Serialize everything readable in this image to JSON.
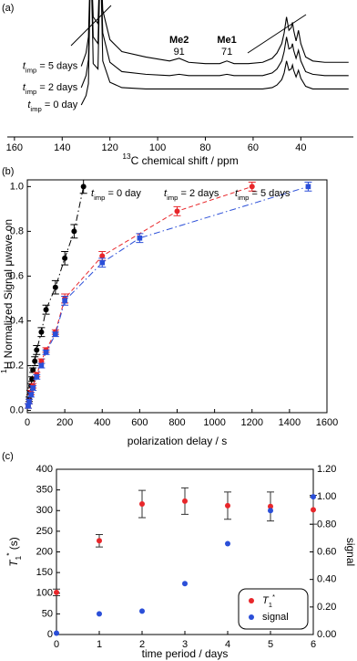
{
  "chart_data": [
    {
      "type": "line",
      "label": "(a)",
      "x_label": "13C chemical shift / ppm",
      "x": [
        132,
        130,
        129,
        128,
        127,
        125,
        124,
        123,
        120,
        115,
        105,
        95,
        91,
        87,
        80,
        74,
        71,
        68,
        62,
        56,
        52,
        50,
        48,
        47,
        46,
        45,
        44,
        43.5,
        43,
        42,
        41,
        40,
        38,
        35,
        30,
        20
      ],
      "xlim": [
        163,
        18
      ],
      "xticks": [
        160,
        140,
        120,
        100,
        80,
        60,
        40
      ],
      "ylim": [
        0,
        10
      ],
      "series": [
        {
          "name": "timp = 5 days",
          "color": "#000000",
          "values": [
            5.3,
            6.3,
            7.5,
            14,
            9,
            8.5,
            14,
            9.5,
            7.3,
            6.4,
            6.0,
            5.7,
            5.9,
            5.6,
            5.5,
            5.5,
            5.7,
            5.5,
            5.5,
            5.6,
            5.9,
            6.3,
            7.0,
            7.8,
            9.0,
            8.0,
            8.2,
            8.6,
            8.0,
            7.2,
            8.0,
            7.0,
            6.0,
            5.7,
            5.6,
            5.6
          ]
        },
        {
          "name": "timp = 2 days",
          "color": "#000000",
          "values": [
            3.7,
            4.6,
            5.8,
            14,
            7.5,
            7.0,
            14,
            7.8,
            5.6,
            4.9,
            4.7,
            4.6,
            4.7,
            4.6,
            4.6,
            4.6,
            4.7,
            4.6,
            4.6,
            4.6,
            4.8,
            5.1,
            5.7,
            6.4,
            7.5,
            6.6,
            6.7,
            7.0,
            6.5,
            5.9,
            6.5,
            5.7,
            4.9,
            4.7,
            4.6,
            4.6
          ]
        },
        {
          "name": "timp = 0 day",
          "color": "#000000",
          "values": [
            2.4,
            3.1,
            4.0,
            14,
            5.5,
            5.1,
            14,
            5.7,
            4.1,
            3.7,
            3.6,
            3.6,
            3.6,
            3.6,
            3.6,
            3.6,
            3.6,
            3.6,
            3.6,
            3.6,
            3.7,
            3.9,
            4.3,
            4.8,
            5.7,
            5.0,
            5.1,
            5.4,
            5.0,
            4.5,
            5.0,
            4.4,
            3.8,
            3.6,
            3.6,
            3.6
          ]
        }
      ],
      "annotations": [
        {
          "name": "Me2",
          "x": 91
        },
        {
          "name": "Me1",
          "x": 71
        }
      ]
    },
    {
      "type": "scatter",
      "label": "(b)",
      "x_label": "polarization delay / s",
      "y_label": "1H Normalized Signal μwave on",
      "xlim": [
        0,
        1600
      ],
      "xticks": [
        0,
        200,
        400,
        600,
        800,
        1000,
        1200,
        1400,
        1600
      ],
      "ylim": [
        -0.01,
        1.03
      ],
      "yticks": [
        {
          "value": 0,
          "label": "0.0"
        },
        0.2,
        0.4,
        0.6,
        0.8,
        {
          "value": 1,
          "label": "1.0"
        }
      ],
      "series": [
        {
          "name": "timp = 0 day",
          "color": "#000000",
          "marker": "circle",
          "linestyle": "dashdot",
          "x": [
            10,
            15,
            20,
            25,
            30,
            40,
            50,
            75,
            100,
            150,
            200,
            250,
            300
          ],
          "values": [
            0.05,
            0.08,
            0.11,
            0.14,
            0.18,
            0.22,
            0.27,
            0.35,
            0.45,
            0.55,
            0.68,
            0.8,
            1.0
          ],
          "errors": [
            0.01,
            0.01,
            0.01,
            0.01,
            0.01,
            0.02,
            0.02,
            0.02,
            0.02,
            0.03,
            0.03,
            0.03,
            0.03
          ]
        },
        {
          "name": "timp = 2 days",
          "color": "#e8262a",
          "marker": "circle",
          "linestyle": "dashed",
          "x": [
            5,
            10,
            20,
            30,
            50,
            75,
            100,
            150,
            200,
            400,
            800,
            1200
          ],
          "values": [
            0.02,
            0.04,
            0.08,
            0.11,
            0.16,
            0.22,
            0.27,
            0.35,
            0.5,
            0.69,
            0.89,
            1.0
          ],
          "errors": [
            0.01,
            0.01,
            0.01,
            0.01,
            0.01,
            0.01,
            0.01,
            0.01,
            0.02,
            0.02,
            0.02,
            0.02
          ]
        },
        {
          "name": "timp = 5 days",
          "color": "#2b4fd8",
          "marker": "square",
          "linestyle": "dashdot",
          "x": [
            5,
            10,
            20,
            30,
            50,
            75,
            100,
            150,
            200,
            400,
            600,
            1500
          ],
          "values": [
            0.02,
            0.04,
            0.07,
            0.1,
            0.15,
            0.2,
            0.26,
            0.34,
            0.49,
            0.66,
            0.77,
            1.0
          ],
          "errors": [
            0.01,
            0.01,
            0.01,
            0.01,
            0.01,
            0.01,
            0.01,
            0.01,
            0.02,
            0.02,
            0.02,
            0.02
          ]
        }
      ]
    },
    {
      "type": "scatter",
      "label": "(c)",
      "x_label": "time period / days",
      "y_label": "T1* (s)",
      "y2_label": "signal",
      "xlim": [
        0,
        6
      ],
      "xticks": [
        0,
        1,
        2,
        3,
        4,
        5,
        6
      ],
      "ylim": [
        0,
        400
      ],
      "yticks": [
        0,
        50,
        100,
        150,
        200,
        250,
        300,
        350,
        400
      ],
      "y2lim": [
        0,
        1.2
      ],
      "y2ticks": [
        {
          "value": 0,
          "label": "0.00"
        },
        {
          "value": 0.2,
          "label": "0.20"
        },
        {
          "value": 0.4,
          "label": "0.40"
        },
        {
          "value": 0.6,
          "label": "0.60"
        },
        {
          "value": 0.8,
          "label": "0.80"
        },
        {
          "value": 1,
          "label": "1.00"
        },
        {
          "value": 1.2,
          "label": "1.20"
        }
      ],
      "legend": "lower right",
      "errorbar_color": "#333333",
      "series": [
        {
          "name": "T1*",
          "color": "#e8262a",
          "marker": "circle",
          "x": [
            0,
            1,
            2,
            3,
            4,
            5,
            6
          ],
          "values": [
            102,
            227,
            316,
            323,
            312,
            310,
            302
          ],
          "errors": [
            8,
            15,
            33,
            32,
            33,
            35,
            35
          ]
        },
        {
          "name": "signal",
          "color": "#2b4fd8",
          "marker": "circle",
          "axis": "y2",
          "x": [
            0,
            1,
            2,
            3,
            4,
            5,
            6
          ],
          "values": [
            0.01,
            0.15,
            0.17,
            0.37,
            0.66,
            0.9,
            1.0
          ]
        }
      ]
    }
  ]
}
